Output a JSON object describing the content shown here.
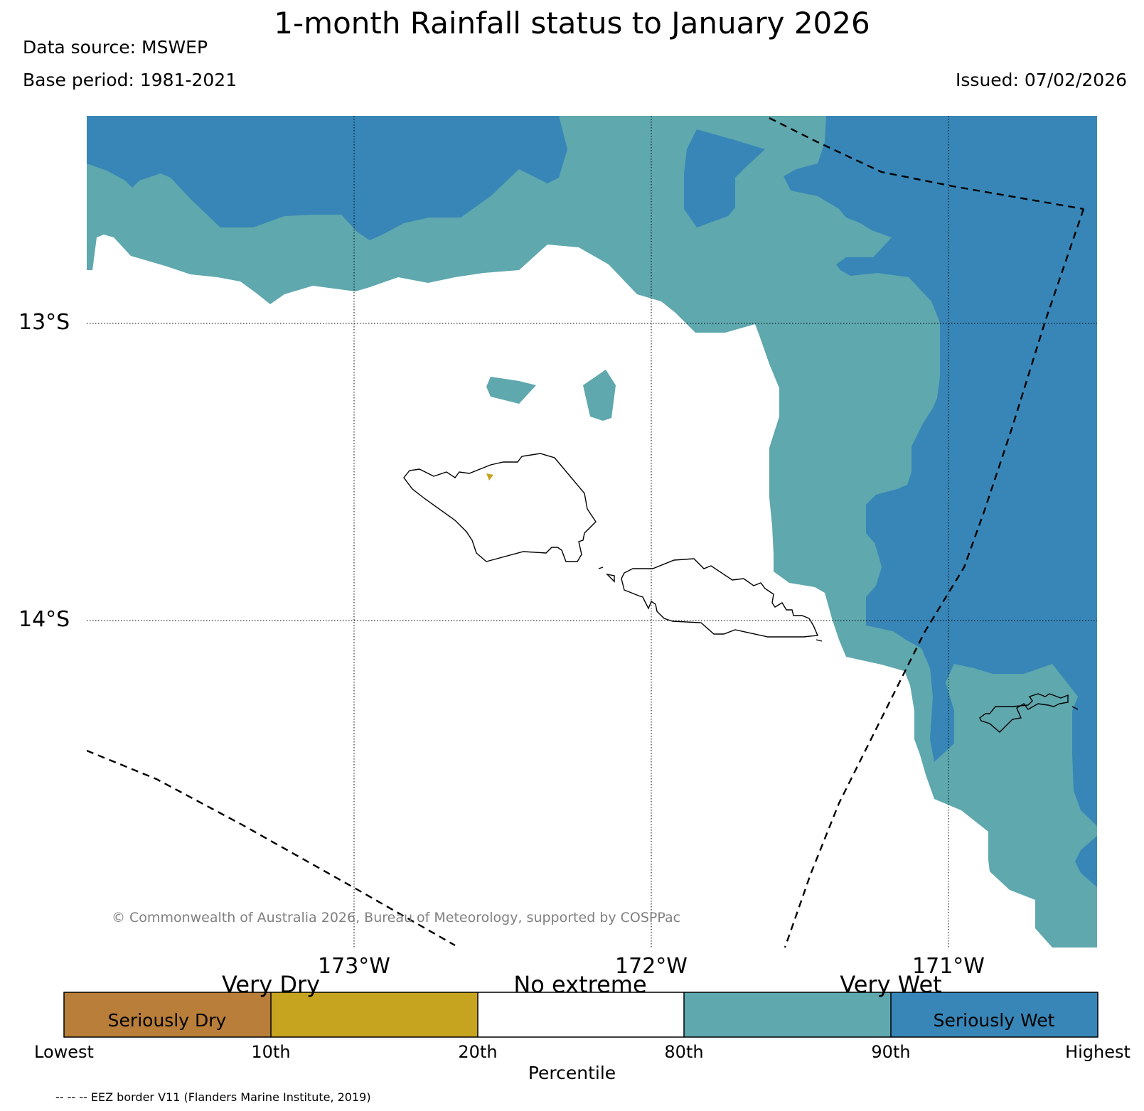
{
  "header": {
    "title": "1-month Rainfall status to January 2026",
    "data_source": "Data source: MSWEP",
    "base_period": "Base period: 1981-2021",
    "issued": "Issued: 07/02/2026"
  },
  "map": {
    "latitude_labels": [
      "13°S",
      "14°S"
    ],
    "longitude_labels": [
      "173°W",
      "172°W",
      "171°W"
    ],
    "copyright": "© Commonwealth of Australia 2026, Bureau of Meteorology, supported by COSPPac"
  },
  "legend": {
    "categories": [
      "Very Dry",
      "No extreme",
      "Very Wet"
    ],
    "inner_labels": [
      "Seriously Dry",
      "Seriously Wet"
    ],
    "ticks": [
      "Lowest",
      "10th",
      "20th",
      "80th",
      "90th",
      "Highest"
    ],
    "xlabel": "Percentile",
    "colors": [
      "#b87e3a",
      "#c7a41f",
      "#ffffff",
      "#5ea8ae",
      "#3786b7"
    ]
  },
  "footnote": "-- -- -- EEZ border V11 (Flanders Marine Institute, 2019)",
  "colors": {
    "very_wet": "#5ea8ae",
    "seriously_wet": "#3786b7",
    "very_dry": "#c7a41f",
    "seriously_dry": "#b87e3a"
  }
}
